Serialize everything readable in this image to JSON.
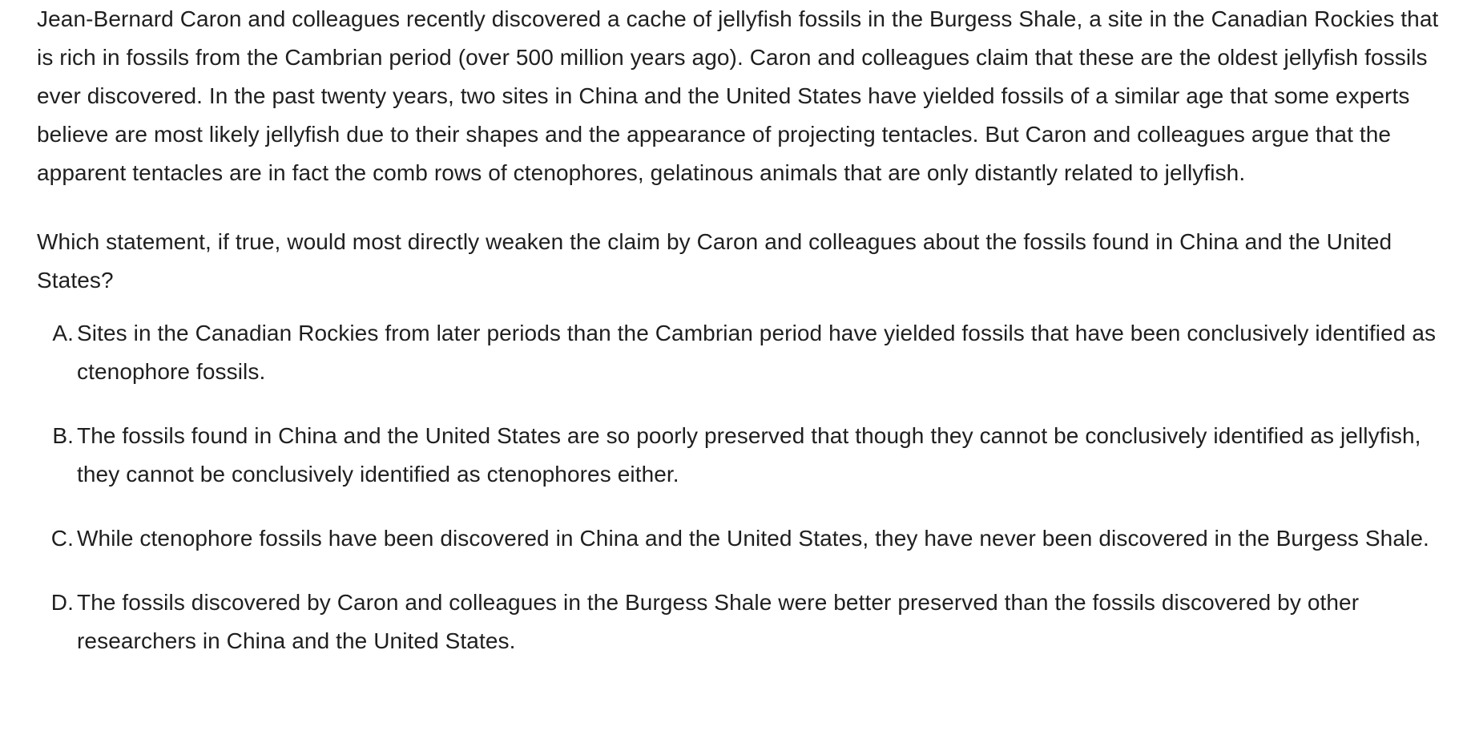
{
  "passage": "Jean-Bernard Caron and colleagues recently discovered a cache of jellyfish fossils in the Burgess Shale, a site in the Canadian Rockies that is rich in fossils from the Cambrian period (over 500 million years ago). Caron and colleagues claim that these are the oldest jellyfish fossils ever discovered. In the past twenty years, two sites in China and the United States have yielded fossils of a similar age that some experts believe are most likely jellyfish due to their shapes and the appearance of projecting tentacles. But Caron and colleagues argue that the apparent tentacles are in fact the comb rows of ctenophores, gelatinous animals that are only distantly related to jellyfish.",
  "question": "Which statement, if true, would most directly weaken the claim by Caron and colleagues about the fossils found in China and the United States?",
  "choices": [
    {
      "letter": "A.",
      "text": "Sites in the Canadian Rockies from later periods than the Cambrian period have yielded fossils that have been conclusively identified as ctenophore fossils."
    },
    {
      "letter": "B.",
      "text": "The fossils found in China and the United States are so poorly preserved that though they cannot be conclusively identified as jellyfish, they cannot be conclusively identified as ctenophores either."
    },
    {
      "letter": "C.",
      "text": "While ctenophore fossils have been discovered in China and the United States, they have never been discovered in the Burgess Shale."
    },
    {
      "letter": "D.",
      "text": "The fossils discovered by Caron and colleagues in the Burgess Shale were better preserved than the fossils discovered by other researchers in China and the United States."
    }
  ]
}
